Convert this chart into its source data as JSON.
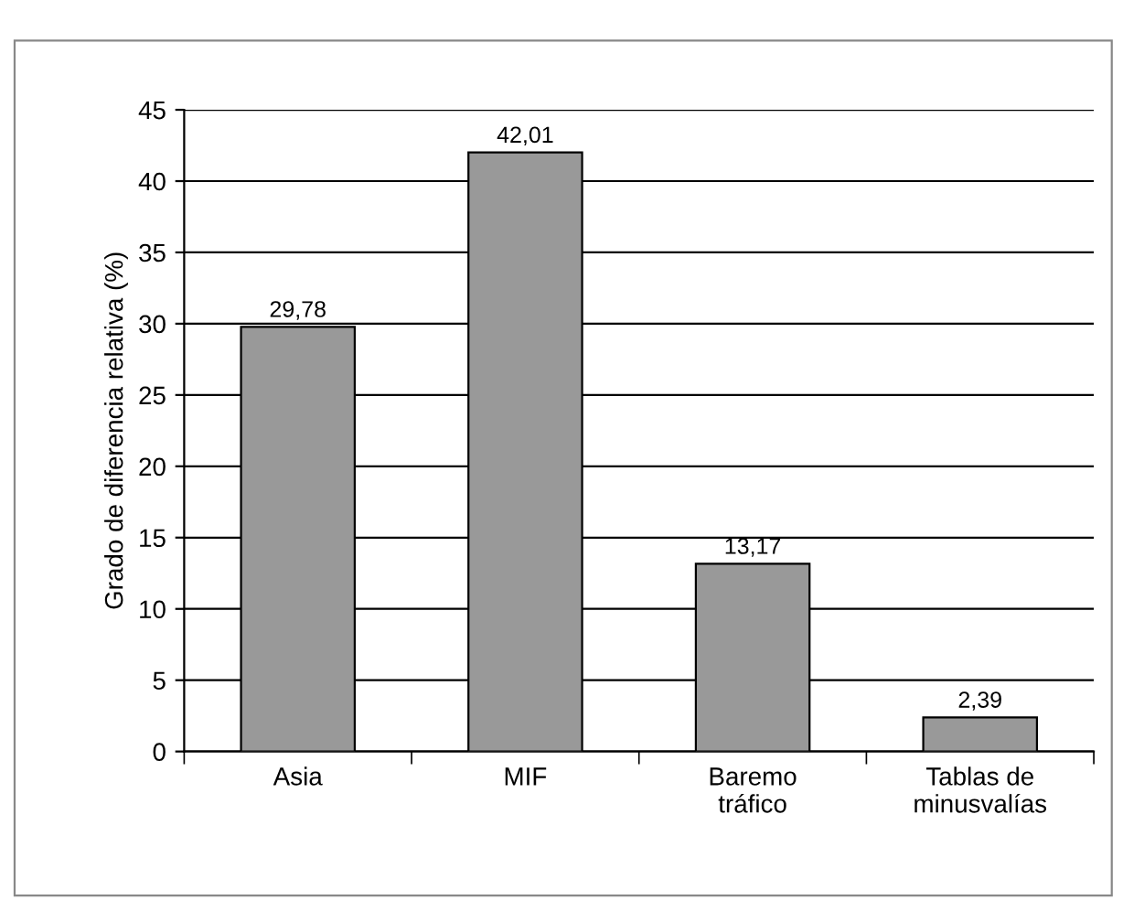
{
  "chart_data": {
    "type": "bar",
    "ylabel": "Grado de diferencia relativa (%)",
    "categories": [
      "Asia",
      "MIF",
      "Baremo\ntráfico",
      "Tablas de\nminusvalías"
    ],
    "values": [
      29.78,
      42.01,
      13.17,
      2.39
    ],
    "value_labels": [
      "29,78",
      "42,01",
      "13,17",
      "2,39"
    ],
    "color": "#999999",
    "ylim": [
      0,
      45
    ],
    "yticks": [
      0,
      5,
      10,
      15,
      20,
      25,
      30,
      35,
      40,
      45
    ],
    "grid": "y"
  }
}
